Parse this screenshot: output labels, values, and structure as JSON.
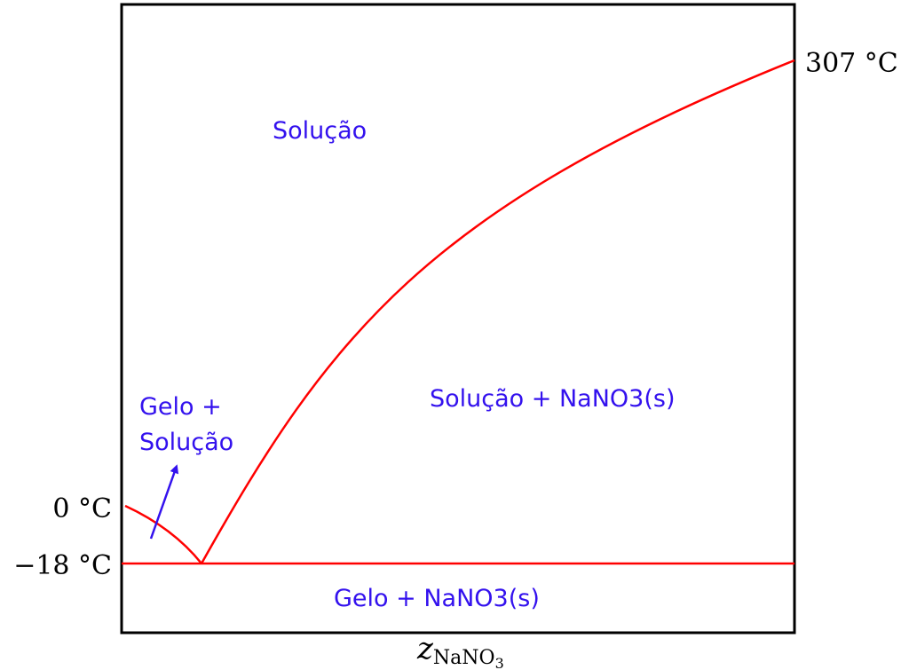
{
  "colors": {
    "curve": "#ff0000",
    "labels": "#3311ee",
    "frame": "#000000"
  },
  "temperature_labels": {
    "t_top": "307 °C",
    "t_zero": "0 °C",
    "t_eutectic": "−18 °C"
  },
  "x_axis_title": {
    "base": "z",
    "subscript": "NaNO",
    "sub_subscript": "3"
  },
  "regions": {
    "solution": "Solução",
    "ice_solution_line1": "Gelo +",
    "ice_solution_line2": "Solução",
    "solution_salt": "Solução + NaNO3(s)",
    "ice_salt": "Gelo + NaNO3(s)"
  }
}
